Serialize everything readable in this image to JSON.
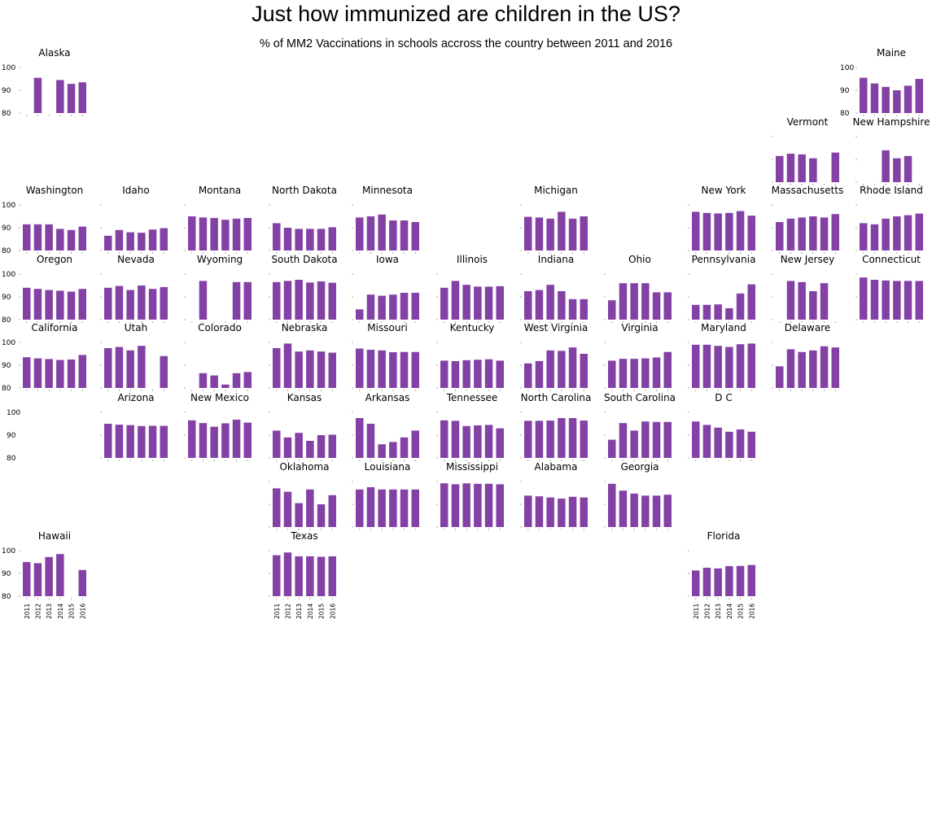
{
  "chart": {
    "title": "Just how immunized are children in the US?",
    "subtitle": "% of MM2 Vaccinations in schools accross the country between 2011 and 2016"
  },
  "chart_data": {
    "type": "bar",
    "layout": "small-multiples tile map",
    "title": "Just how immunized are children in the US?",
    "subtitle": "% of MM2 Vaccinations in schools accross the country between 2011 and 2016",
    "categories": [
      "2011",
      "2012",
      "2013",
      "2014",
      "2015",
      "2016"
    ],
    "ylim": [
      80,
      100
    ],
    "yticks": [
      80,
      90,
      100
    ],
    "bar_color": "#8441a5",
    "states": [
      {
        "name": "Alaska",
        "col": 0,
        "row": 0,
        "values": [
          null,
          95.5,
          null,
          94.5,
          92.8,
          93.5
        ]
      },
      {
        "name": "Maine",
        "col": 10,
        "row": 0,
        "values": [
          95.5,
          93,
          91.5,
          90,
          92,
          95
        ]
      },
      {
        "name": "Vermont",
        "col": 9,
        "row": 1,
        "values": [
          91.5,
          92.5,
          92.2,
          90.5,
          null,
          93
        ]
      },
      {
        "name": "New Hampshire",
        "col": 10,
        "row": 1,
        "values": [
          null,
          null,
          94,
          90.5,
          91.5,
          null
        ]
      },
      {
        "name": "Washington",
        "col": 0,
        "row": 2,
        "values": [
          91.5,
          91.5,
          91.5,
          89.5,
          89,
          90.5
        ]
      },
      {
        "name": "Idaho",
        "col": 1,
        "row": 2,
        "values": [
          86.5,
          89,
          88,
          87.8,
          89.2,
          89.8
        ]
      },
      {
        "name": "Montana",
        "col": 2,
        "row": 2,
        "values": [
          95,
          94.5,
          94.3,
          93.5,
          94,
          94.3
        ]
      },
      {
        "name": "North Dakota",
        "col": 3,
        "row": 2,
        "values": [
          92,
          90,
          89.5,
          89.5,
          89.5,
          90.2
        ]
      },
      {
        "name": "Minnesota",
        "col": 4,
        "row": 2,
        "values": [
          94.5,
          95,
          95.8,
          93.2,
          93.2,
          92.5
        ]
      },
      {
        "name": "Michigan",
        "col": 6,
        "row": 2,
        "values": [
          94.8,
          94.5,
          94,
          97,
          94,
          95
        ]
      },
      {
        "name": "New York",
        "col": 8,
        "row": 2,
        "values": [
          97,
          96.5,
          96.3,
          96.5,
          97.3,
          95.3
        ]
      },
      {
        "name": "Massachusetts",
        "col": 9,
        "row": 2,
        "values": [
          92.5,
          94,
          94.5,
          95,
          94.5,
          96
        ]
      },
      {
        "name": "Rhode Island",
        "col": 10,
        "row": 2,
        "values": [
          92,
          91.5,
          94,
          95,
          95.5,
          96.2
        ]
      },
      {
        "name": "Oregon",
        "col": 0,
        "row": 3,
        "values": [
          94,
          93.5,
          93,
          92.7,
          92.3,
          93.5
        ]
      },
      {
        "name": "Nevada",
        "col": 1,
        "row": 3,
        "values": [
          94,
          94.8,
          93,
          95,
          93.5,
          94.3
        ]
      },
      {
        "name": "Wyoming",
        "col": 2,
        "row": 3,
        "values": [
          null,
          97,
          null,
          null,
          96.5,
          96.5
        ]
      },
      {
        "name": "South Dakota",
        "col": 3,
        "row": 3,
        "values": [
          96.5,
          97,
          97.5,
          96.3,
          96.8,
          96.2
        ]
      },
      {
        "name": "Iowa",
        "col": 4,
        "row": 3,
        "values": [
          84.5,
          91,
          90.5,
          91,
          91.8,
          91.8
        ]
      },
      {
        "name": "Illinois",
        "col": 5,
        "row": 3,
        "values": [
          94,
          97,
          95.3,
          94.5,
          94.5,
          94.7
        ]
      },
      {
        "name": "Indiana",
        "col": 6,
        "row": 3,
        "values": [
          92.5,
          93,
          95.3,
          92.5,
          89,
          89
        ]
      },
      {
        "name": "Ohio",
        "col": 7,
        "row": 3,
        "values": [
          88.5,
          96,
          96,
          96,
          92,
          92
        ]
      },
      {
        "name": "Pennsylvania",
        "col": 8,
        "row": 3,
        "values": [
          86.5,
          86.5,
          86.7,
          85,
          91.5,
          95.5
        ]
      },
      {
        "name": "New Jersey",
        "col": 9,
        "row": 3,
        "values": [
          null,
          97,
          96.5,
          92.5,
          96,
          null
        ]
      },
      {
        "name": "Connecticut",
        "col": 10,
        "row": 3,
        "values": [
          98.5,
          97.5,
          97.2,
          97,
          97,
          97
        ]
      },
      {
        "name": "California",
        "col": 0,
        "row": 4,
        "values": [
          93.5,
          93,
          92.7,
          92.3,
          92.5,
          94.5
        ]
      },
      {
        "name": "Utah",
        "col": 1,
        "row": 4,
        "values": [
          97.5,
          98,
          96.5,
          98.5,
          null,
          94
        ]
      },
      {
        "name": "Colorado",
        "col": 2,
        "row": 4,
        "values": [
          null,
          86.5,
          85.5,
          81.5,
          86.5,
          87
        ]
      },
      {
        "name": "Nebraska",
        "col": 3,
        "row": 4,
        "values": [
          97.5,
          99.5,
          96,
          96.5,
          96,
          95.5
        ]
      },
      {
        "name": "Missouri",
        "col": 4,
        "row": 4,
        "values": [
          97.3,
          96.8,
          96.5,
          95.7,
          95.8,
          95.8
        ]
      },
      {
        "name": "Kentucky",
        "col": 5,
        "row": 4,
        "values": [
          92,
          91.8,
          92.2,
          92.4,
          92.6,
          92
        ]
      },
      {
        "name": "West Virginia",
        "col": 6,
        "row": 4,
        "values": [
          90.8,
          91.8,
          96.5,
          96.3,
          97.8,
          95
        ]
      },
      {
        "name": "Virginia",
        "col": 7,
        "row": 4,
        "values": [
          92,
          92.8,
          92.8,
          93,
          93.4,
          95.8
        ]
      },
      {
        "name": "Maryland",
        "col": 8,
        "row": 4,
        "values": [
          99,
          99,
          98.5,
          98,
          99.2,
          99.5
        ]
      },
      {
        "name": "Delaware",
        "col": 9,
        "row": 4,
        "values": [
          89.5,
          97,
          95.8,
          96.5,
          98.3,
          97.8
        ]
      },
      {
        "name": "Arizona",
        "col": 1,
        "row": 5,
        "values": [
          95,
          94.6,
          94.4,
          94,
          94.1,
          94.1
        ]
      },
      {
        "name": "New Mexico",
        "col": 2,
        "row": 5,
        "values": [
          96.5,
          95.3,
          93.7,
          95.2,
          96.8,
          95.5
        ]
      },
      {
        "name": "Kansas",
        "col": 3,
        "row": 5,
        "values": [
          92,
          89,
          91,
          87.5,
          90,
          90.2
        ]
      },
      {
        "name": "Arkansas",
        "col": 4,
        "row": 5,
        "values": [
          97.5,
          95,
          86,
          87,
          89,
          92
        ]
      },
      {
        "name": "Tennessee",
        "col": 5,
        "row": 5,
        "values": [
          96.5,
          96.3,
          94,
          94.3,
          94.5,
          93
        ]
      },
      {
        "name": "North Carolina",
        "col": 6,
        "row": 5,
        "values": [
          96.3,
          96.3,
          96.4,
          97.5,
          97.5,
          96.4
        ]
      },
      {
        "name": "South Carolina",
        "col": 7,
        "row": 5,
        "values": [
          88,
          95.3,
          92,
          96,
          95.8,
          95.8
        ]
      },
      {
        "name": "D C",
        "col": 8,
        "row": 5,
        "values": [
          96,
          94.5,
          93.3,
          91.5,
          92.5,
          91.5
        ]
      },
      {
        "name": "Oklahoma",
        "col": 3,
        "row": 6,
        "values": [
          97,
          95.5,
          90.5,
          96.5,
          90,
          94
        ]
      },
      {
        "name": "Louisiana",
        "col": 4,
        "row": 6,
        "values": [
          96.5,
          97.5,
          96.5,
          96.5,
          96.5,
          96.5
        ]
      },
      {
        "name": "Mississippi",
        "col": 5,
        "row": 6,
        "values": [
          99.2,
          98.8,
          99.2,
          99,
          99,
          98.8
        ]
      },
      {
        "name": "Alabama",
        "col": 6,
        "row": 6,
        "values": [
          93.8,
          93.5,
          93,
          92.5,
          93.3,
          93
        ]
      },
      {
        "name": "Georgia",
        "col": 7,
        "row": 6,
        "values": [
          99,
          96,
          94.7,
          93.8,
          93.8,
          94.2
        ]
      },
      {
        "name": "Hawaii",
        "col": 0,
        "row": 7,
        "values": [
          95,
          94.5,
          97.2,
          98.5,
          null,
          91.5
        ]
      },
      {
        "name": "Texas",
        "col": 3,
        "row": 7,
        "values": [
          98,
          99.2,
          97.5,
          97.5,
          97.3,
          97.5
        ]
      },
      {
        "name": "Florida",
        "col": 8,
        "row": 7,
        "values": [
          91.3,
          92.5,
          92.2,
          93.2,
          93.3,
          93.7
        ]
      }
    ]
  }
}
